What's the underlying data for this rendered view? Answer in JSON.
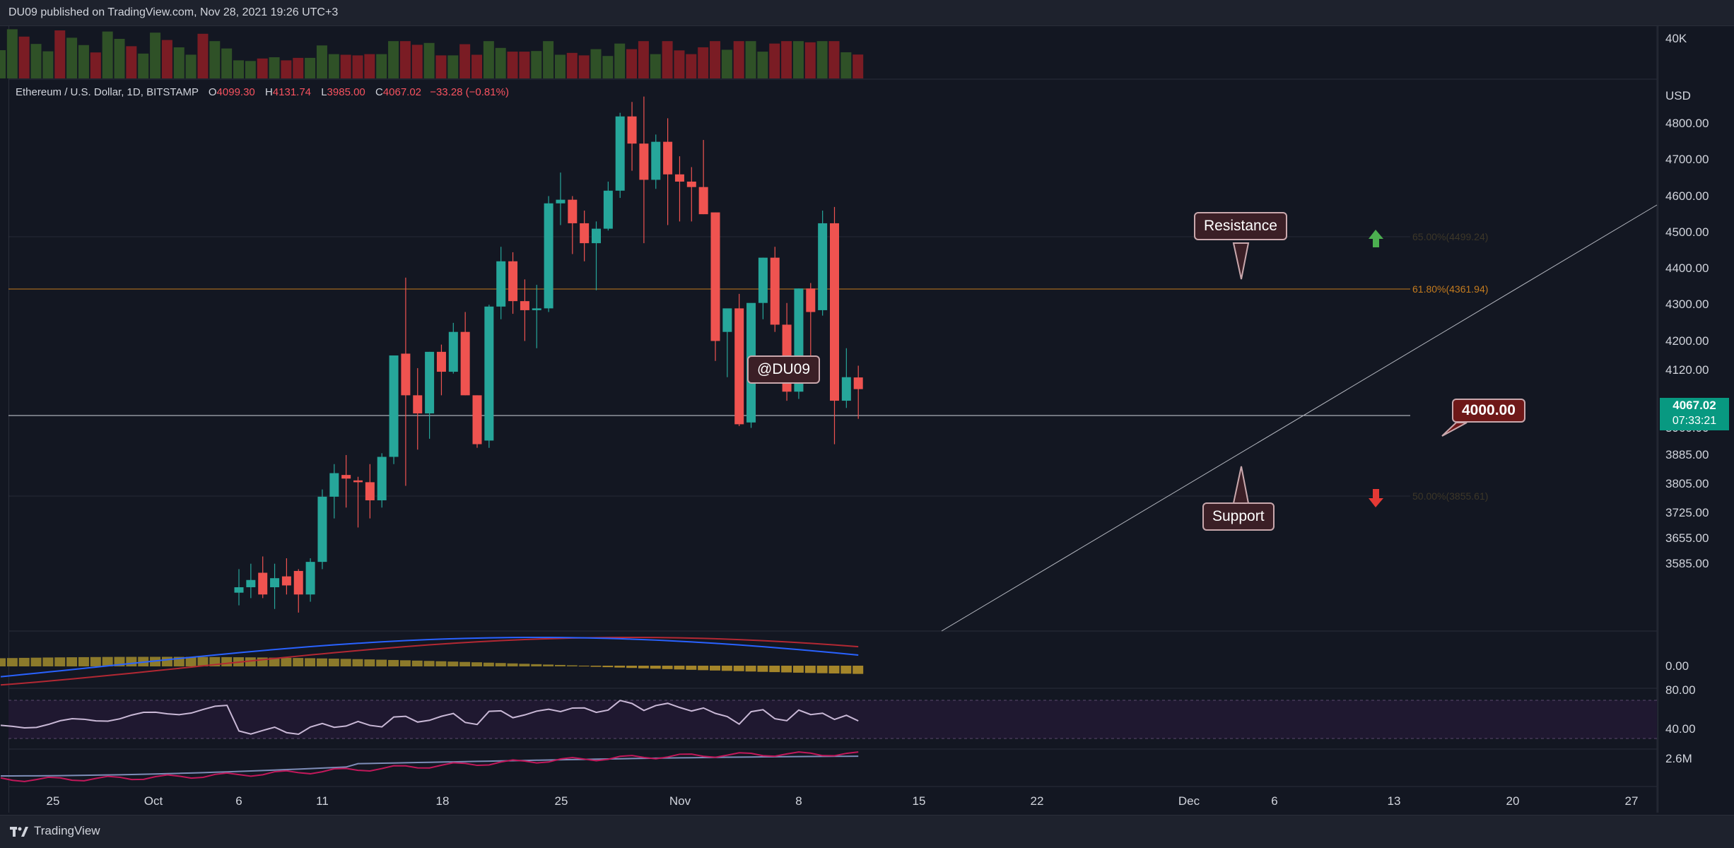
{
  "header": {
    "published": "DU09 published on TradingView.com, Nov 28, 2021 19:26 UTC+3"
  },
  "legend": {
    "symbol": "Ethereum / U.S. Dollar, 1D, BITSTAMP",
    "o_label": "O",
    "o": "4099.30",
    "h_label": "H",
    "h": "4131.74",
    "l_label": "L",
    "l": "3985.00",
    "c_label": "C",
    "c": "4067.02",
    "change": "−33.28 (−0.81%)"
  },
  "price_axis": {
    "currency": "USD",
    "labels": [
      "4800.00",
      "4700.00",
      "4600.00",
      "4500.00",
      "4400.00",
      "4300.00",
      "4200.00",
      "4120.00",
      "3960.00",
      "3885.00",
      "3805.00",
      "3725.00",
      "3655.00",
      "3585.00"
    ],
    "volume_label": "40K",
    "macd_label": "0.00",
    "rsi_labels": [
      "80.00",
      "40.00"
    ],
    "obv_label": "2.6M"
  },
  "last_price": {
    "price": "4067.02",
    "countdown": "07:33:21",
    "color": "#089981"
  },
  "time_axis": [
    "25",
    "Oct",
    "6",
    "11",
    "18",
    "25",
    "Nov",
    "8",
    "15",
    "22",
    "Dec",
    "6",
    "13",
    "20",
    "27"
  ],
  "annotations": {
    "watermark": "@DU09",
    "resistance": "Resistance",
    "support": "Support",
    "level": "4000.00",
    "fib_618": "61.80%(4361.94)",
    "fib_65": "65.00%(4499.24)",
    "fib_50": "50.00%(3855.61)"
  },
  "footer": {
    "brand": "TradingView"
  },
  "colors": {
    "up": "#26a69a",
    "down": "#ef5350",
    "fib": "#c47b1e",
    "background": "#131722"
  },
  "chart_data": {
    "type": "candlestick",
    "title": "Ethereum / U.S. Dollar, 1D, BITSTAMP",
    "x_start_date": "2021-10-06",
    "candles": [
      [
        3505,
        3570,
        3470,
        3520
      ],
      [
        3520,
        3585,
        3490,
        3540
      ],
      [
        3560,
        3605,
        3490,
        3500
      ],
      [
        3520,
        3585,
        3460,
        3545
      ],
      [
        3550,
        3600,
        3500,
        3525
      ],
      [
        3565,
        3570,
        3450,
        3500
      ],
      [
        3500,
        3600,
        3480,
        3590
      ],
      [
        3590,
        3790,
        3570,
        3770
      ],
      [
        3770,
        3860,
        3710,
        3835
      ],
      [
        3830,
        3885,
        3740,
        3820
      ],
      [
        3815,
        3825,
        3685,
        3810
      ],
      [
        3810,
        3860,
        3710,
        3760
      ],
      [
        3760,
        3890,
        3740,
        3880
      ],
      [
        3880,
        4160,
        3860,
        4160
      ],
      [
        4165,
        4375,
        3800,
        4050
      ],
      [
        4050,
        4125,
        3900,
        4000
      ],
      [
        4000,
        4170,
        3930,
        4170
      ],
      [
        4170,
        4190,
        4050,
        4115
      ],
      [
        4115,
        4250,
        4110,
        4225
      ],
      [
        4225,
        4280,
        4050,
        4050
      ],
      [
        4050,
        4050,
        3905,
        3915
      ],
      [
        3925,
        4300,
        3905,
        4295
      ],
      [
        4295,
        4460,
        4260,
        4420
      ],
      [
        4420,
        4445,
        4275,
        4310
      ],
      [
        4310,
        4370,
        4200,
        4285
      ],
      [
        4285,
        4355,
        4180,
        4290
      ],
      [
        4290,
        4600,
        4280,
        4580
      ],
      [
        4580,
        4665,
        4520,
        4590
      ],
      [
        4590,
        4600,
        4440,
        4525
      ],
      [
        4525,
        4560,
        4420,
        4470
      ],
      [
        4470,
        4530,
        4340,
        4510
      ],
      [
        4510,
        4640,
        4505,
        4615
      ],
      [
        4615,
        4830,
        4595,
        4820
      ],
      [
        4820,
        4860,
        4670,
        4745
      ],
      [
        4745,
        4875,
        4470,
        4645
      ],
      [
        4645,
        4770,
        4620,
        4750
      ],
      [
        4750,
        4815,
        4520,
        4660
      ],
      [
        4660,
        4710,
        4530,
        4640
      ],
      [
        4640,
        4680,
        4530,
        4625
      ],
      [
        4625,
        4755,
        4550,
        4550
      ],
      [
        4555,
        4555,
        4145,
        4200
      ],
      [
        4225,
        4285,
        4100,
        4290
      ],
      [
        4290,
        4330,
        3965,
        3970
      ],
      [
        3975,
        4300,
        3960,
        4305
      ],
      [
        4305,
        4430,
        4260,
        4430
      ],
      [
        4430,
        4460,
        4225,
        4245
      ],
      [
        4245,
        4305,
        4035,
        4060
      ],
      [
        4060,
        4345,
        4040,
        4345
      ],
      [
        4345,
        4360,
        4115,
        4280
      ],
      [
        4285,
        4560,
        4270,
        4525
      ],
      [
        4525,
        4570,
        3915,
        4035
      ],
      [
        4035,
        4180,
        4015,
        4100
      ],
      [
        4099.3,
        4131.74,
        3985,
        4067.02
      ]
    ],
    "volume_note": "daily volume bars, axis max 40K",
    "resistance": 4499.24,
    "support": 4000,
    "fib_levels": [
      {
        "ratio": "65.00%",
        "price": 4499.24
      },
      {
        "ratio": "61.80%",
        "price": 4361.94
      },
      {
        "ratio": "50.00%",
        "price": 3855.61
      }
    ],
    "panes": [
      "price",
      "volume",
      "MACD",
      "RSI",
      "OBV"
    ],
    "ylim": [
      3555,
      4900
    ]
  }
}
